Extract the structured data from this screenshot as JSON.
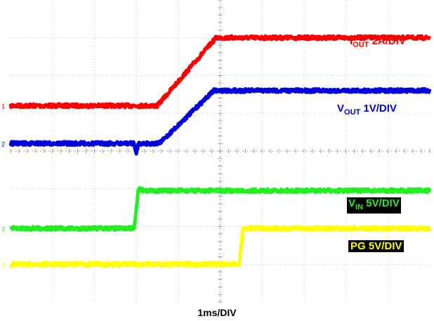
{
  "chart_data": {
    "type": "line",
    "xlabel": "1ms/DIV",
    "x_unit": "ms",
    "divisions": {
      "x": 10,
      "y": 8
    },
    "grid": true,
    "series": [
      {
        "name": "I_OUT",
        "label_main": "I",
        "label_sub": "OUT",
        "label_rest": " 2A/DIV",
        "color": "#ff0000",
        "points": [
          [
            0,
            5.2
          ],
          [
            3.5,
            5.2
          ],
          [
            4.9,
            7.0
          ],
          [
            10,
            7.0
          ]
        ]
      },
      {
        "name": "V_OUT",
        "label_main": "V",
        "label_sub": "OUT",
        "label_rest": " 1V/DIV",
        "color": "#0000dd",
        "points": [
          [
            0,
            4.2
          ],
          [
            2.95,
            4.2
          ],
          [
            3.0,
            3.9
          ],
          [
            3.05,
            4.2
          ],
          [
            3.55,
            4.2
          ],
          [
            4.85,
            5.6
          ],
          [
            10,
            5.6
          ]
        ]
      },
      {
        "name": "V_IN",
        "label_main": "V",
        "label_sub": "IN",
        "label_rest": " 5V/DIV",
        "color": "#22ee22",
        "points": [
          [
            0,
            1.95
          ],
          [
            2.95,
            1.95
          ],
          [
            3.05,
            3.0
          ],
          [
            3.2,
            2.95
          ],
          [
            10,
            2.95
          ]
        ]
      },
      {
        "name": "PG",
        "label_main": "PG",
        "label_sub": "",
        "label_rest": " 5V/DIV",
        "color": "#ffff00",
        "points": [
          [
            0,
            1.0
          ],
          [
            5.45,
            1.0
          ],
          [
            5.55,
            1.95
          ],
          [
            10,
            1.95
          ]
        ]
      }
    ],
    "channel_markers": [
      "1",
      "2",
      "3",
      "4"
    ]
  }
}
